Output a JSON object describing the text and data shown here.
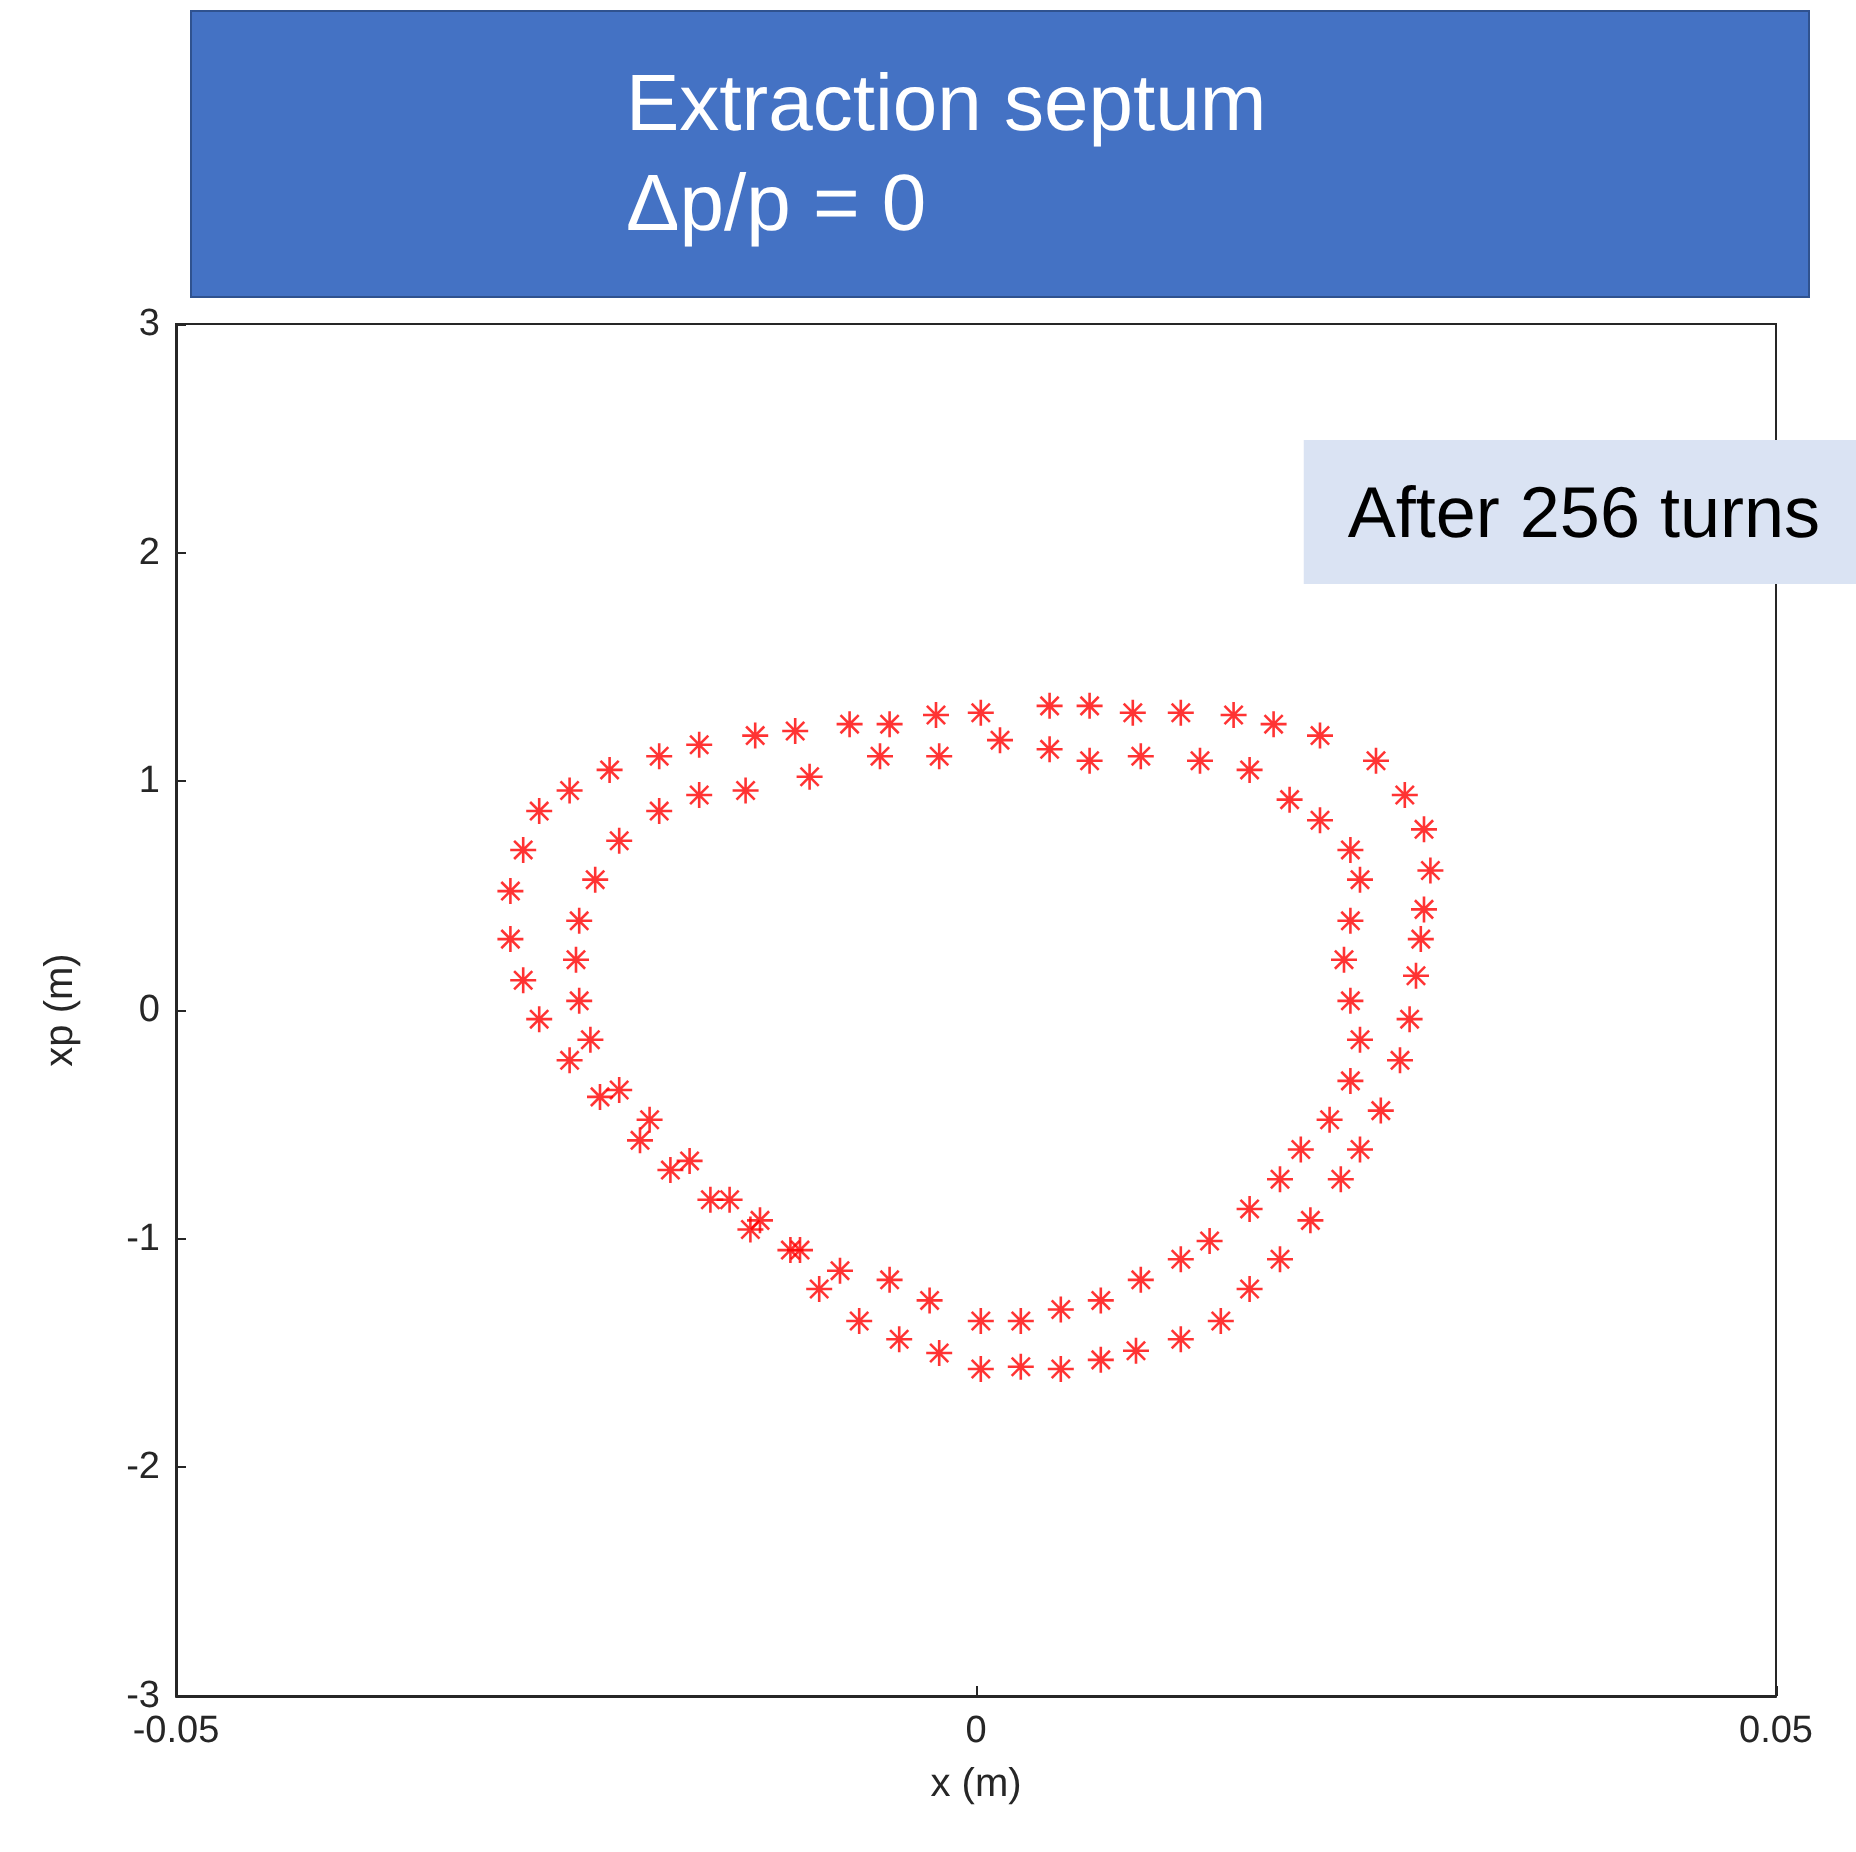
{
  "chart_data": {
    "type": "scatter",
    "title": "Extraction septum\nΔp/p = 0",
    "xlabel": "x (m)",
    "ylabel": "xp (m)",
    "annotations": [
      "After 256 turns"
    ],
    "xlim": [
      -0.05,
      0.05
    ],
    "xticks": [
      -0.05,
      0,
      0.05
    ],
    "ylim": [
      -3,
      3
    ],
    "yticks": [
      -3,
      -2,
      -1,
      0,
      1,
      2,
      3
    ],
    "grid": false,
    "marker": "cross",
    "series": [
      {
        "color": "#ff0000",
        "x": [
          -0.0138,
          -0.0113,
          -0.0079,
          -0.0054,
          -0.0025,
          0.0003,
          0.0046,
          0.0071,
          0.0098,
          0.0128,
          0.0161,
          0.0186,
          0.0215,
          0.025,
          0.0268,
          0.028,
          0.0284,
          0.028,
          0.0278,
          0.0275,
          0.0271,
          0.0265,
          0.0253,
          0.024,
          0.0228,
          0.0209,
          0.019,
          0.0171,
          0.0153,
          0.0128,
          0.01,
          0.0078,
          0.0053,
          0.0028,
          0.0003,
          -0.0023,
          -0.0048,
          -0.0073,
          -0.0098,
          -0.0116,
          -0.0141,
          -0.0166,
          -0.0191,
          -0.021,
          -0.0235,
          -0.0254,
          -0.0273,
          -0.0283,
          -0.0291,
          -0.0291,
          -0.0283,
          -0.0273,
          -0.0254,
          -0.0229,
          -0.0198,
          -0.0173,
          -0.0144,
          -0.0104,
          -0.006,
          -0.0023,
          0.0015,
          0.0046,
          0.0071,
          0.0103,
          0.014,
          0.0171,
          0.0196,
          0.0215,
          0.0234,
          0.024,
          0.0234,
          0.023,
          0.0234,
          0.024,
          0.0234,
          0.0221,
          0.0203,
          0.019,
          0.0171,
          0.0146,
          0.0128,
          0.0103,
          0.0078,
          0.0053,
          0.0028,
          0.0003,
          -0.0029,
          -0.0054,
          -0.0085,
          -0.011,
          -0.0135,
          -0.0154,
          -0.0179,
          -0.0204,
          -0.0223,
          -0.0241,
          -0.0248,
          -0.025,
          -0.0248,
          -0.0238,
          -0.0223,
          -0.0198,
          -0.0173
        ],
        "values": [
          1.2,
          1.22,
          1.25,
          1.25,
          1.29,
          1.3,
          1.33,
          1.33,
          1.3,
          1.3,
          1.29,
          1.25,
          1.2,
          1.09,
          0.94,
          0.79,
          0.61,
          0.44,
          0.31,
          0.15,
          -0.04,
          -0.22,
          -0.44,
          -0.61,
          -0.74,
          -0.92,
          -1.09,
          -1.22,
          -1.36,
          -1.44,
          -1.49,
          -1.53,
          -1.57,
          -1.56,
          -1.57,
          -1.5,
          -1.44,
          -1.36,
          -1.22,
          -1.05,
          -0.96,
          -0.83,
          -0.7,
          -0.57,
          -0.38,
          -0.22,
          -0.04,
          0.13,
          0.31,
          0.52,
          0.7,
          0.87,
          0.96,
          1.05,
          1.11,
          1.16,
          0.96,
          1.02,
          1.11,
          1.11,
          1.18,
          1.14,
          1.09,
          1.11,
          1.09,
          1.05,
          0.92,
          0.83,
          0.7,
          0.57,
          0.39,
          0.22,
          0.04,
          -0.13,
          -0.31,
          -0.48,
          -0.61,
          -0.74,
          -0.87,
          -1.01,
          -1.09,
          -1.18,
          -1.27,
          -1.31,
          -1.36,
          -1.36,
          -1.27,
          -1.18,
          -1.14,
          -1.05,
          -0.92,
          -0.83,
          -0.66,
          -0.48,
          -0.35,
          -0.13,
          0.04,
          0.22,
          0.39,
          0.57,
          0.74,
          0.87,
          0.94
        ]
      }
    ]
  }
}
